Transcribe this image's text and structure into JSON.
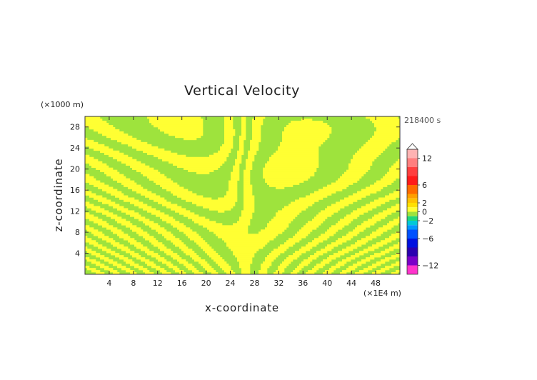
{
  "chart_data": {
    "type": "heatmap",
    "title": "Vertical Velocity",
    "xlabel": "x-coordinate",
    "ylabel": "z-coordinate",
    "x_unit_label": "(×1E4 m)",
    "y_unit_label": "(×1000 m)",
    "time_label": "218400 s",
    "xlim": [
      0,
      52
    ],
    "ylim": [
      0,
      30
    ],
    "x_ticks": [
      "4",
      "8",
      "12",
      "16",
      "20",
      "24",
      "28",
      "32",
      "36",
      "40",
      "44",
      "48"
    ],
    "y_ticks": [
      "4",
      "8",
      "12",
      "16",
      "20",
      "24",
      "28"
    ],
    "field_colors": {
      "weak_positive": "#ffff33",
      "weak_negative": "#9ee33d"
    },
    "colorbar": {
      "min": -14,
      "max": 14,
      "labels": [
        "12",
        "6",
        "2",
        "0",
        "−2",
        "−6",
        "−12"
      ],
      "label_values": [
        12,
        6,
        2,
        0,
        -2,
        -6,
        -12
      ],
      "levels": [
        {
          "from": 12,
          "to": 14,
          "color": "#ffb3b3"
        },
        {
          "from": 10,
          "to": 12,
          "color": "#ff7f7f"
        },
        {
          "from": 8,
          "to": 10,
          "color": "#ff3f3f"
        },
        {
          "from": 6,
          "to": 8,
          "color": "#ff1a1a"
        },
        {
          "from": 4,
          "to": 6,
          "color": "#ff6a00"
        },
        {
          "from": 3,
          "to": 4,
          "color": "#ff9f00"
        },
        {
          "from": 2,
          "to": 3,
          "color": "#ffc200"
        },
        {
          "from": 1,
          "to": 2,
          "color": "#ffe000"
        },
        {
          "from": 0,
          "to": 1,
          "color": "#ffff33"
        },
        {
          "from": -1,
          "to": 0,
          "color": "#9ee33d"
        },
        {
          "from": -2,
          "to": -1,
          "color": "#1fd67a"
        },
        {
          "from": -3,
          "to": -2,
          "color": "#00c8d8"
        },
        {
          "from": -4,
          "to": -3,
          "color": "#0096ff"
        },
        {
          "from": -6,
          "to": -4,
          "color": "#0050ff"
        },
        {
          "from": -8,
          "to": -6,
          "color": "#0010e0"
        },
        {
          "from": -10,
          "to": -8,
          "color": "#2a00b0"
        },
        {
          "from": -12,
          "to": -10,
          "color": "#7a00c8"
        },
        {
          "from": -14,
          "to": -12,
          "color": "#ff33cc"
        }
      ]
    }
  }
}
